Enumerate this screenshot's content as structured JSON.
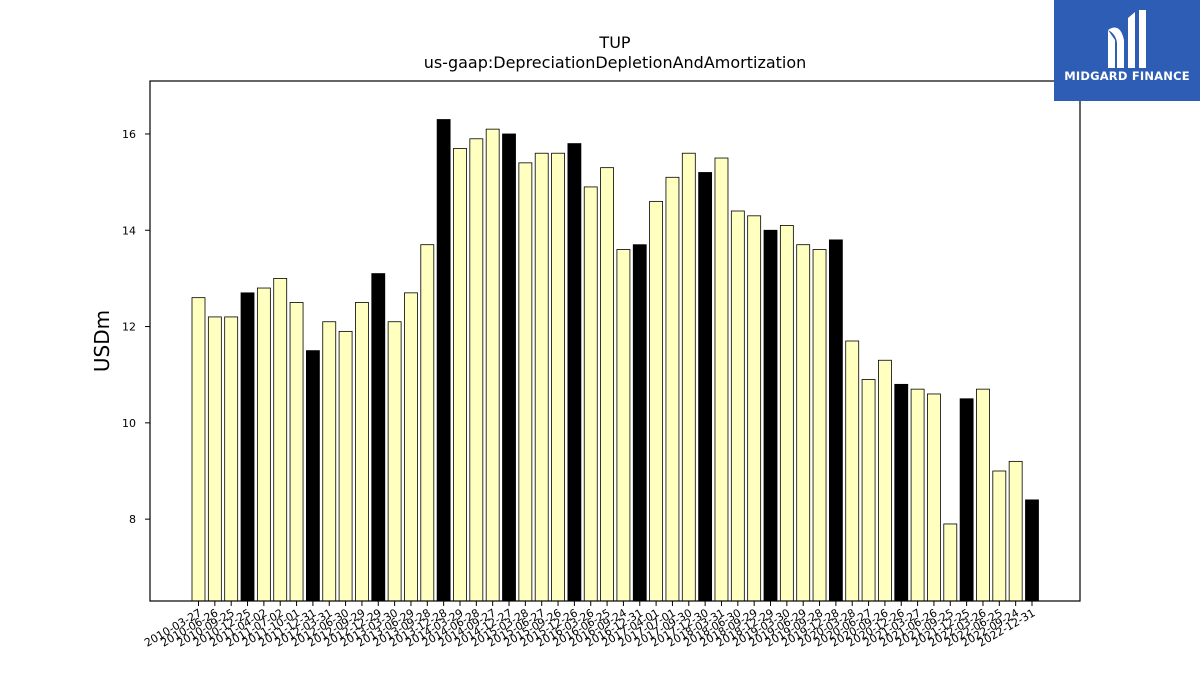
{
  "logo": {
    "text": "MIDGARD FINANCE",
    "icon": "midgard-logo-icon",
    "background": "#2d5db5"
  },
  "chart_data": {
    "type": "bar",
    "title": "TUP",
    "subtitle": "us-gaap:DepreciationDepletionAndAmortization",
    "xlabel": "",
    "ylabel": "USDm",
    "ylim": [
      6.3,
      17.1
    ],
    "yticks": [
      8,
      10,
      12,
      14,
      16
    ],
    "grid": false,
    "colors": {
      "quarter": "#ffffc0",
      "year_end": "#000000",
      "edge": "#000000"
    },
    "categories": [
      "2010-03-27",
      "2010-06-26",
      "2010-09-25",
      "2010-12-25",
      "2011-04-02",
      "2011-07-02",
      "2011-10-01",
      "2011-12-31",
      "2012-03-31",
      "2012-06-30",
      "2012-09-29",
      "2012-12-29",
      "2013-03-30",
      "2013-06-29",
      "2013-09-28",
      "2013-12-28",
      "2014-03-29",
      "2014-06-28",
      "2014-09-27",
      "2014-12-27",
      "2015-03-28",
      "2015-06-27",
      "2015-09-26",
      "2015-12-26",
      "2016-03-26",
      "2016-06-25",
      "2016-09-24",
      "2016-12-31",
      "2017-04-01",
      "2017-07-01",
      "2017-09-30",
      "2017-12-30",
      "2018-03-31",
      "2018-06-30",
      "2018-09-29",
      "2018-12-29",
      "2019-03-30",
      "2019-06-29",
      "2019-09-28",
      "2019-12-28",
      "2020-03-28",
      "2020-06-27",
      "2020-09-26",
      "2020-12-26",
      "2021-03-27",
      "2021-06-26",
      "2021-09-25",
      "2021-12-25",
      "2022-03-26",
      "2022-06-25",
      "2022-09-24",
      "2022-12-31"
    ],
    "values": [
      12.6,
      12.2,
      12.2,
      12.7,
      12.8,
      13.0,
      12.5,
      11.5,
      12.1,
      11.9,
      12.5,
      13.1,
      12.1,
      12.7,
      13.7,
      16.3,
      15.7,
      15.9,
      16.1,
      16.0,
      15.4,
      15.6,
      15.6,
      15.8,
      14.9,
      15.3,
      13.6,
      13.7,
      14.6,
      15.1,
      15.6,
      15.2,
      15.5,
      14.4,
      14.3,
      14.0,
      14.1,
      13.7,
      13.6,
      13.8,
      11.7,
      10.9,
      11.3,
      10.8,
      10.7,
      10.6,
      7.9,
      10.5,
      10.7,
      9.0,
      9.2,
      8.4
    ],
    "year_end": [
      false,
      false,
      false,
      true,
      false,
      false,
      false,
      true,
      false,
      false,
      false,
      true,
      false,
      false,
      false,
      true,
      false,
      false,
      false,
      true,
      false,
      false,
      false,
      true,
      false,
      false,
      false,
      true,
      false,
      false,
      false,
      true,
      false,
      false,
      false,
      true,
      false,
      false,
      false,
      true,
      false,
      false,
      false,
      true,
      false,
      false,
      false,
      true,
      false,
      false,
      false,
      true
    ]
  }
}
